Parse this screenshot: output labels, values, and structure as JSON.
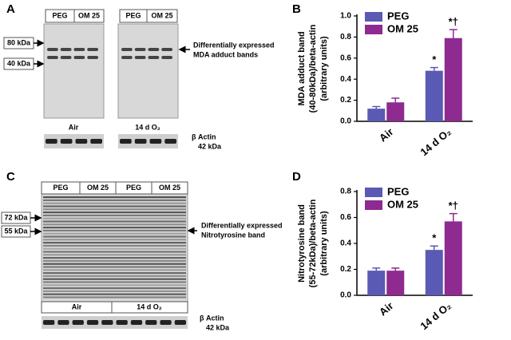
{
  "blots": [
    {
      "panel": "A",
      "top_labels": [
        "PEG",
        "OM 25",
        "PEG",
        "OM 25"
      ],
      "markers": [
        "80 kDa",
        "40 kDa"
      ],
      "annotation": [
        "Differentially expressed",
        "MDA adduct bands"
      ],
      "groups": [
        "Air",
        "14 d O₂"
      ],
      "loading": [
        "β Actin",
        "42 kDa"
      ]
    },
    {
      "panel": "C",
      "top_labels": [
        "PEG",
        "OM 25",
        "PEG",
        "OM 25"
      ],
      "markers": [
        "72 kDa",
        "55 kDa"
      ],
      "annotation": [
        "Differentially expressed",
        "Nitrotyrosine band"
      ],
      "groups": [
        "Air",
        "14 d O₂"
      ],
      "loading": [
        "β Actin",
        "42 kDa"
      ]
    }
  ],
  "chart_data": [
    {
      "type": "bar",
      "panel": "B",
      "y_label": [
        "MDA adduct band",
        "(40-80kDa)/beta-actin",
        "(arbitrary units)"
      ],
      "categories": [
        "Air",
        "14 d O₂"
      ],
      "series": [
        {
          "name": "PEG",
          "color": "#5a5ab4",
          "values": [
            0.12,
            0.48
          ],
          "errors": [
            0.02,
            0.03
          ],
          "annotations": [
            null,
            "*"
          ]
        },
        {
          "name": "OM 25",
          "color": "#8e2a90",
          "values": [
            0.18,
            0.79
          ],
          "errors": [
            0.04,
            0.08
          ],
          "annotations": [
            null,
            "*†"
          ]
        }
      ],
      "ylim": [
        0,
        1.0
      ],
      "yticks": [
        {
          "value": 0,
          "label": "0.0"
        },
        0.2,
        0.4,
        0.6,
        0.8,
        {
          "value": 1.0,
          "label": "1.0"
        }
      ]
    },
    {
      "type": "bar",
      "panel": "D",
      "y_label": [
        "Nitrotyrosine band",
        "(55-72kDa)/beta-actin",
        "(arbitrary units)"
      ],
      "categories": [
        "Air",
        "14 d O₂"
      ],
      "series": [
        {
          "name": "PEG",
          "color": "#5a5ab4",
          "values": [
            0.19,
            0.35
          ],
          "errors": [
            0.02,
            0.03
          ],
          "annotations": [
            null,
            "*"
          ]
        },
        {
          "name": "OM 25",
          "color": "#8e2a90",
          "values": [
            0.19,
            0.57
          ],
          "errors": [
            0.02,
            0.06
          ],
          "annotations": [
            null,
            "*†"
          ]
        }
      ],
      "ylim": [
        0,
        0.8
      ],
      "yticks": [
        {
          "value": 0,
          "label": "0.0"
        },
        0.2,
        0.4,
        0.6,
        0.8
      ]
    }
  ]
}
